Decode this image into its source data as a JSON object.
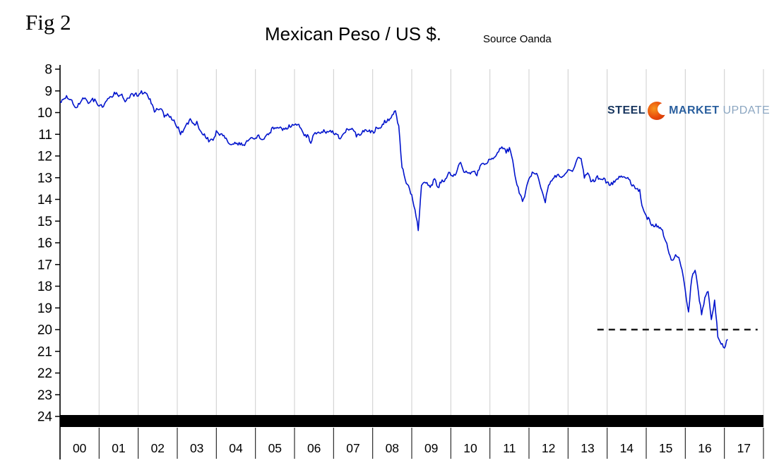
{
  "fig_label": "Fig 2",
  "title": "Mexican Peso / US $.",
  "source": "Source Oanda",
  "logo": {
    "steel": "STEEL",
    "market": "MARKET",
    "update": "UPDATE"
  },
  "colors": {
    "line": "#0013cc",
    "dashed": "#1a1a1a",
    "grid": "#cccccc",
    "axis": "#000000",
    "band": "#000000",
    "logo_steel": "#17355e",
    "logo_market": "#2a5f9e",
    "logo_update": "#8ba6c1",
    "logo_ball": "#e8490a"
  },
  "chart_data": {
    "type": "line",
    "title": "Mexican Peso / US $",
    "source": "Oanda",
    "x_axis": {
      "start_year": 2000,
      "end_year": 2018,
      "tick_labels": [
        "00",
        "01",
        "02",
        "03",
        "04",
        "05",
        "06",
        "07",
        "08",
        "09",
        "10",
        "11",
        "12",
        "13",
        "14",
        "15",
        "16",
        "17"
      ]
    },
    "y_axis": {
      "min": 8,
      "max": 24,
      "inverted": true,
      "ticks": [
        8,
        9,
        10,
        11,
        12,
        13,
        14,
        15,
        16,
        17,
        18,
        19,
        20,
        21,
        22,
        23,
        24
      ]
    },
    "grid": "vertical",
    "series": [
      {
        "name": "Mexican Pesos per US Dollar",
        "color": "#0013cc",
        "x_start_year": 2000,
        "interval_months": 1,
        "values": [
          9.51,
          9.44,
          9.29,
          9.39,
          9.52,
          9.86,
          9.56,
          9.27,
          9.38,
          9.56,
          9.42,
          9.46,
          9.7,
          9.7,
          9.56,
          9.37,
          9.22,
          9.07,
          9.19,
          9.14,
          9.44,
          9.27,
          9.2,
          9.16,
          9.16,
          9.08,
          9.05,
          9.27,
          9.54,
          9.9,
          9.79,
          9.86,
          10.13,
          10.1,
          10.2,
          10.35,
          10.63,
          10.93,
          10.84,
          10.54,
          10.27,
          10.49,
          10.49,
          10.9,
          10.98,
          11.16,
          11.35,
          11.24,
          10.89,
          11.02,
          11.0,
          11.26,
          11.51,
          11.38,
          11.48,
          11.4,
          11.49,
          11.41,
          11.3,
          11.21,
          11.26,
          11.08,
          11.17,
          11.12,
          10.99,
          10.8,
          10.66,
          10.63,
          10.79,
          10.81,
          10.64,
          10.65,
          10.55,
          10.48,
          10.74,
          11.05,
          11.09,
          11.39,
          10.99,
          10.88,
          11.0,
          10.84,
          10.93,
          10.85,
          10.93,
          11.04,
          11.14,
          10.99,
          10.81,
          10.82,
          10.81,
          11.07,
          11.04,
          10.83,
          10.89,
          10.85,
          10.91,
          10.76,
          10.72,
          10.52,
          10.4,
          10.32,
          10.19,
          9.92,
          10.63,
          12.52,
          13.07,
          13.42,
          13.85,
          14.55,
          15.37,
          13.43,
          13.16,
          13.33,
          13.38,
          13.04,
          13.45,
          13.22,
          13.11,
          12.86,
          12.81,
          12.92,
          12.61,
          12.24,
          12.74,
          12.72,
          12.83,
          12.73,
          12.86,
          12.45,
          12.33,
          12.39,
          12.13,
          12.07,
          11.97,
          11.72,
          11.58,
          11.81,
          11.67,
          12.26,
          13.16,
          13.65,
          14.1,
          13.65,
          13.02,
          12.78,
          12.75,
          13.06,
          13.62,
          14.1,
          13.36,
          13.18,
          12.9,
          12.88,
          13.05,
          12.88,
          12.7,
          12.72,
          12.45,
          12.16,
          12.03,
          12.98,
          12.75,
          13.12,
          13.2,
          12.95,
          13.1,
          13.05,
          13.22,
          13.3,
          13.2,
          13.06,
          12.92,
          13.0,
          12.98,
          13.15,
          13.4,
          13.48,
          13.62,
          14.5,
          14.8,
          14.92,
          15.23,
          15.22,
          15.26,
          15.48,
          15.94,
          16.42,
          16.87,
          16.58,
          16.64,
          17.2,
          18.2,
          19.2,
          17.6,
          17.2,
          18.3,
          19.3,
          18.6,
          18.2,
          19.6,
          18.7,
          20.3,
          20.65,
          20.8,
          20.45
        ]
      }
    ],
    "annotations": [
      {
        "type": "dashed-hline",
        "value": 20,
        "from_year": 2013.75,
        "to_year": 2017.85
      }
    ],
    "render": {
      "upsample": 3,
      "noise_amplitude": 0.09
    }
  }
}
